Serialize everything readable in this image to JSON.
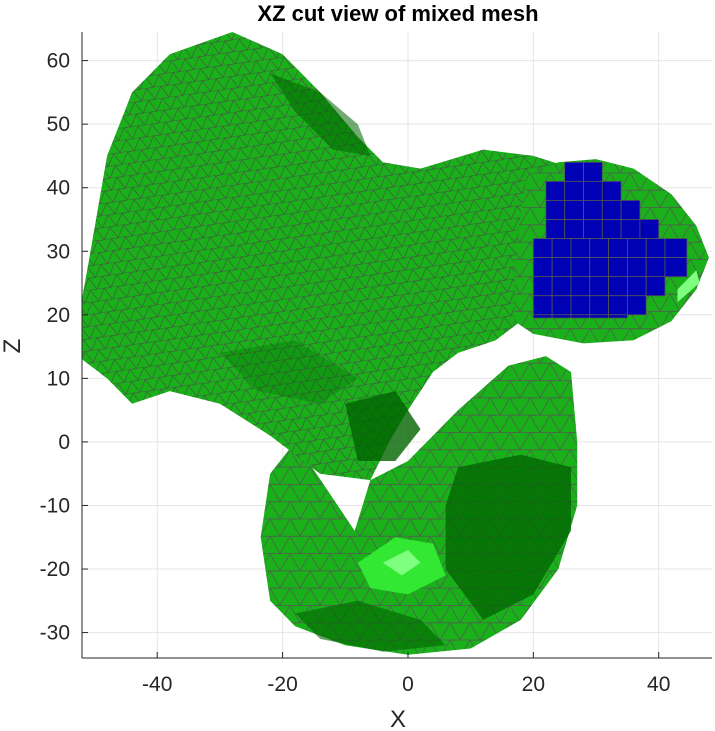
{
  "chart_data": {
    "type": "mesh-3d-projection",
    "title": "XZ cut view of mixed mesh",
    "xlabel": "X",
    "ylabel": "Z",
    "xlim": [
      -52,
      48.5
    ],
    "ylim": [
      -34,
      64.5
    ],
    "xticks": [
      -40,
      -20,
      0,
      20,
      40
    ],
    "yticks": [
      -30,
      -20,
      -10,
      0,
      10,
      20,
      30,
      40,
      50,
      60
    ],
    "grid": true,
    "colors": {
      "surface_green": "#19b019",
      "surface_dark": "#006400",
      "surface_light": "#33e833",
      "highlight": "#7fff7f",
      "cut_fill": "#0000b4",
      "edge": "#555555",
      "grid": "#e5e5e5"
    },
    "cut_region": {
      "x_range": [
        20,
        44.5
      ],
      "z_range": [
        19.5,
        44
      ]
    }
  }
}
